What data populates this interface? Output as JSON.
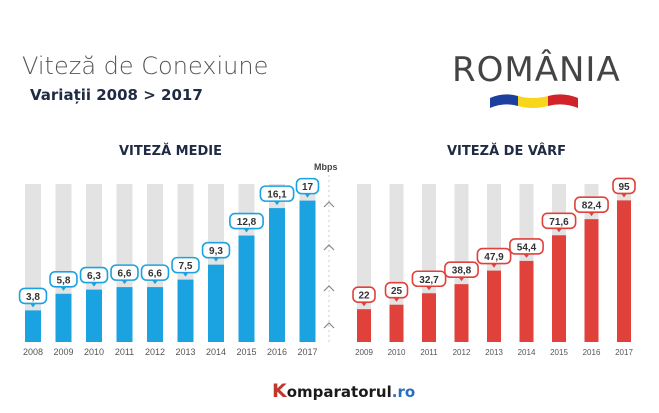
{
  "header": {
    "title": "Viteză de Conexiune",
    "subtitle": "Variații  2008 > 2017",
    "country": "ROMÂNIA"
  },
  "footer": {
    "brand_k": "K",
    "brand_main": "omparatorul",
    "brand_tld": ".ro"
  },
  "colors": {
    "blue": "#1aa3e0",
    "red": "#e0413a",
    "track": "#e3e3e3",
    "flag": [
      "#1d3f9e",
      "#f7d61b",
      "#d1232a"
    ]
  },
  "chart_data": [
    {
      "type": "bar",
      "title": "VITEZĂ MEDIE",
      "unit": "Mbps",
      "categories": [
        "2008",
        "2009",
        "2010",
        "2011",
        "2012",
        "2013",
        "2014",
        "2015",
        "2016",
        "2017"
      ],
      "values": [
        3.8,
        5.8,
        6.3,
        6.6,
        6.6,
        7.5,
        9.3,
        12.8,
        16.1,
        17
      ],
      "labels": [
        "3,8",
        "5,8",
        "6,3",
        "6,6",
        "6,6",
        "7,5",
        "9,3",
        "12,8",
        "16,1",
        "17"
      ],
      "ylim": [
        0,
        19
      ]
    },
    {
      "type": "bar",
      "title": "VITEZĂ DE VÂRF",
      "categories": [
        "2009",
        "2010",
        "2011",
        "2012",
        "2013",
        "2014",
        "2015",
        "2016",
        "2017"
      ],
      "values": [
        22,
        25,
        32.7,
        38.8,
        47.9,
        54.4,
        71.6,
        82.4,
        95
      ],
      "labels": [
        "22",
        "25",
        "32,7",
        "38,8",
        "47,9",
        "54,4",
        "71,6",
        "82,4",
        "95"
      ],
      "ylim": [
        0,
        106
      ]
    }
  ]
}
